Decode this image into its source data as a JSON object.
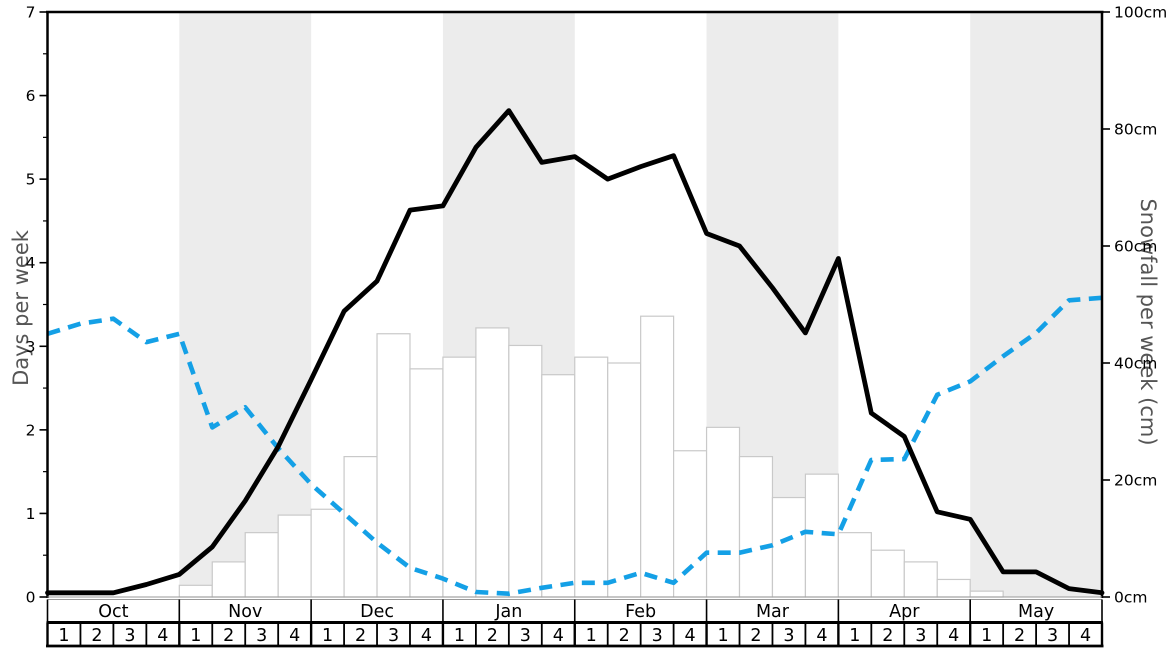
{
  "chart_data": {
    "type": "composite",
    "title": "",
    "x": {
      "months": [
        "Oct",
        "Nov",
        "Dec",
        "Jan",
        "Feb",
        "Mar",
        "Apr",
        "May"
      ],
      "week_labels": [
        "1",
        "2",
        "3",
        "4"
      ],
      "weeks_per_month": 4
    },
    "shaded_month_indices": [
      1,
      3,
      5,
      7
    ],
    "left_axis": {
      "label": "Days per week",
      "min": 0,
      "max": 7,
      "major_step": 1,
      "minor_step": 0.5
    },
    "right_axis": {
      "label": "Snowfall per week (cm)",
      "min": 0,
      "max": 100,
      "tick_step": 20,
      "tick_suffix": "cm"
    },
    "series": [
      {
        "id": "snowfall_bars",
        "type": "bar",
        "axis": "right",
        "unit": "cm",
        "values": [
          0,
          0,
          0,
          0,
          2,
          6,
          11,
          14,
          15,
          24,
          45,
          39,
          41,
          46,
          43,
          38,
          41,
          40,
          48,
          25,
          29,
          24,
          17,
          21,
          11,
          8,
          6,
          3,
          1,
          0,
          0,
          0
        ]
      },
      {
        "id": "black_solid_line",
        "type": "line",
        "axis": "left",
        "style": "solid",
        "values": [
          0.05,
          0.05,
          0.05,
          0.15,
          0.27,
          0.6,
          1.15,
          1.8,
          2.6,
          3.42,
          3.78,
          4.63,
          4.68,
          5.38,
          5.82,
          5.2,
          5.27,
          5.0,
          5.15,
          5.28,
          4.35,
          4.2,
          3.7,
          3.16,
          4.05,
          2.2,
          1.92,
          1.02,
          0.93,
          0.3,
          0.3,
          0.1,
          0.05
        ]
      },
      {
        "id": "blue_dashed_line",
        "type": "line",
        "axis": "left",
        "style": "dashed",
        "values": [
          3.15,
          3.27,
          3.33,
          3.05,
          3.15,
          2.03,
          2.27,
          1.78,
          1.35,
          1.0,
          0.65,
          0.35,
          0.22,
          0.06,
          0.04,
          0.11,
          0.17,
          0.17,
          0.29,
          0.17,
          0.53,
          0.53,
          0.62,
          0.78,
          0.75,
          1.64,
          1.65,
          2.42,
          2.58,
          2.88,
          3.16,
          3.55,
          3.58
        ]
      }
    ],
    "colors": {
      "black_line": "#000000",
      "blue_line": "#14a0e6",
      "band": "#ececec",
      "bar_fill": "#ffffff",
      "bar_stroke": "#c9c9c9",
      "axis_title": "#555555",
      "tick_label": "#000000",
      "table_border": "#000000",
      "baseline": "#999999"
    }
  }
}
